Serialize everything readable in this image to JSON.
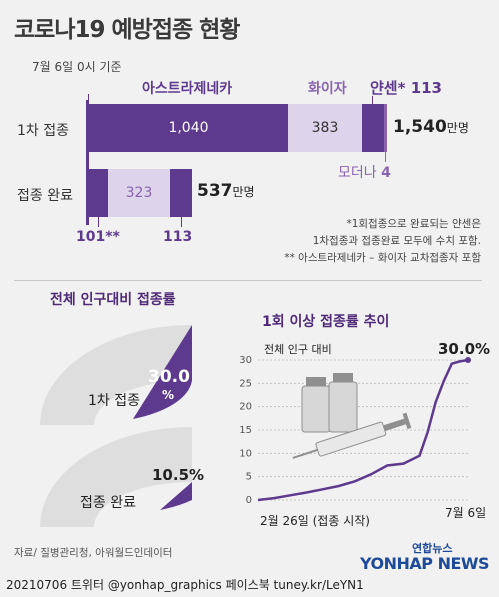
{
  "header": {
    "title": "코로나19 예방접종 현황",
    "date": "7월 6일 0시 기준"
  },
  "colors": {
    "dark_purple": "#5e3a8e",
    "mid_purple": "#8a64b0",
    "light_purple": "#ddd3ea",
    "gray_gauge": "#dedede",
    "text_purple": "#6d4a98"
  },
  "vaccine_labels": {
    "astrazeneca": "아스트라제네카",
    "pfizer": "화이자",
    "janssen": "얀센*",
    "janssen_value": "113",
    "moderna": "모더나",
    "moderna_value": "4"
  },
  "rows": {
    "first_label": "1차 접종",
    "complete_label": "접종 완료",
    "unit": "만명",
    "first_total": "1,540",
    "complete_total": "537",
    "first_az": "1,040",
    "first_pfizer": "383",
    "complete_pfizer": "323",
    "complete_az": "101**",
    "complete_janssen": "113"
  },
  "notes": {
    "line1": "*1회접종으로 완료되는 얀센은",
    "line2": "1차접종과 접종완료 모두에 수치 포함.",
    "line3": "** 아스트라제네카 – 화이자 교차접종자 포함"
  },
  "rate_section": {
    "title": "전체 인구대비 접종률",
    "first_label": "1차 접종",
    "first_value": "30.0",
    "first_unit": "%",
    "complete_label": "접종 완료",
    "complete_value": "10.5%"
  },
  "trend_section": {
    "title": "1회 이상  접종률 추이",
    "subtitle": "전체 인구 대비",
    "end_value": "30.0%",
    "x_start_label": "2월 26일 (접종 시작)",
    "x_end_label": "7월 6일"
  },
  "chart_data": [
    {
      "type": "bar",
      "stacked": true,
      "orientation": "horizontal",
      "categories": [
        "1차 접종",
        "접종 완료"
      ],
      "series": [
        {
          "name": "아스트라제네카",
          "values": [
            1040,
            101
          ]
        },
        {
          "name": "화이자",
          "values": [
            383,
            323
          ]
        },
        {
          "name": "얀센",
          "values": [
            113,
            113
          ]
        },
        {
          "name": "모더나",
          "values": [
            4,
            0
          ]
        }
      ],
      "totals": [
        1540,
        537
      ],
      "unit": "만명"
    },
    {
      "type": "pie",
      "subtype": "half-donut gauge",
      "title": "전체 인구대비 접종률",
      "series": [
        {
          "name": "1차 접종",
          "value": 30.0
        },
        {
          "name": "접종 완료",
          "value": 10.5
        }
      ],
      "unit": "%"
    },
    {
      "type": "line",
      "title": "1회 이상  접종률 추이",
      "ylabel": "전체 인구 대비",
      "ylim": [
        0,
        30
      ],
      "yticks": [
        0,
        5,
        10,
        15,
        20,
        25,
        30
      ],
      "grid": true,
      "x": [
        0,
        10,
        20,
        30,
        40,
        50,
        60,
        70,
        80,
        90,
        100,
        105,
        110,
        115,
        120,
        125,
        130
      ],
      "y": [
        0,
        0.4,
        1.0,
        1.6,
        2.3,
        3.0,
        4.0,
        5.5,
        7.4,
        7.8,
        9.5,
        14.5,
        21.0,
        25.5,
        29.2,
        29.7,
        30.0
      ],
      "x_labels": [
        "2월 26일 (접종 시작)",
        "7월 6일"
      ],
      "annotation": "30.0%"
    }
  ],
  "source": "자료/ 질병관리청, 아워월드인데이터",
  "logo": {
    "small": "연합뉴스",
    "big": "YONHAP NEWS"
  },
  "footer": {
    "credit": "20210706 트위터 @yonhap_graphics  페이스북 tuney.kr/LeYN1"
  }
}
